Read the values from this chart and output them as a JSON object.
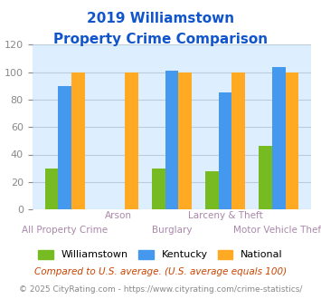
{
  "title_line1": "2019 Williamstown",
  "title_line2": "Property Crime Comparison",
  "categories": [
    "All Property Crime",
    "Arson",
    "Burglary",
    "Larceny & Theft",
    "Motor Vehicle Theft"
  ],
  "williamstown": [
    30,
    0,
    30,
    28,
    46
  ],
  "kentucky": [
    90,
    0,
    101,
    85,
    104
  ],
  "national": [
    100,
    100,
    100,
    100,
    100
  ],
  "color_williamstown": "#77bb22",
  "color_kentucky": "#4499ee",
  "color_national": "#ffaa22",
  "ylim": [
    0,
    120
  ],
  "yticks": [
    0,
    20,
    40,
    60,
    80,
    100,
    120
  ],
  "title_color": "#1155cc",
  "axis_bg_color": "#ddeeff",
  "fig_bg_color": "#ffffff",
  "footnote1": "Compared to U.S. average. (U.S. average equals 100)",
  "footnote2": "© 2025 CityRating.com - https://www.cityrating.com/crime-statistics/",
  "footnote1_color": "#cc4400",
  "footnote2_color": "#888888",
  "tick_color": "#888888",
  "grid_color": "#bbccdd",
  "bar_width": 0.25,
  "label_color": "#aa88aa",
  "bottom_labels": [
    [
      0,
      "All Property Crime"
    ],
    [
      2,
      "Burglary"
    ],
    [
      4,
      "Motor Vehicle Theft"
    ]
  ],
  "top_labels": [
    [
      1,
      "Arson"
    ],
    [
      3,
      "Larceny & Theft"
    ]
  ],
  "legend_labels": [
    "Williamstown",
    "Kentucky",
    "National"
  ]
}
